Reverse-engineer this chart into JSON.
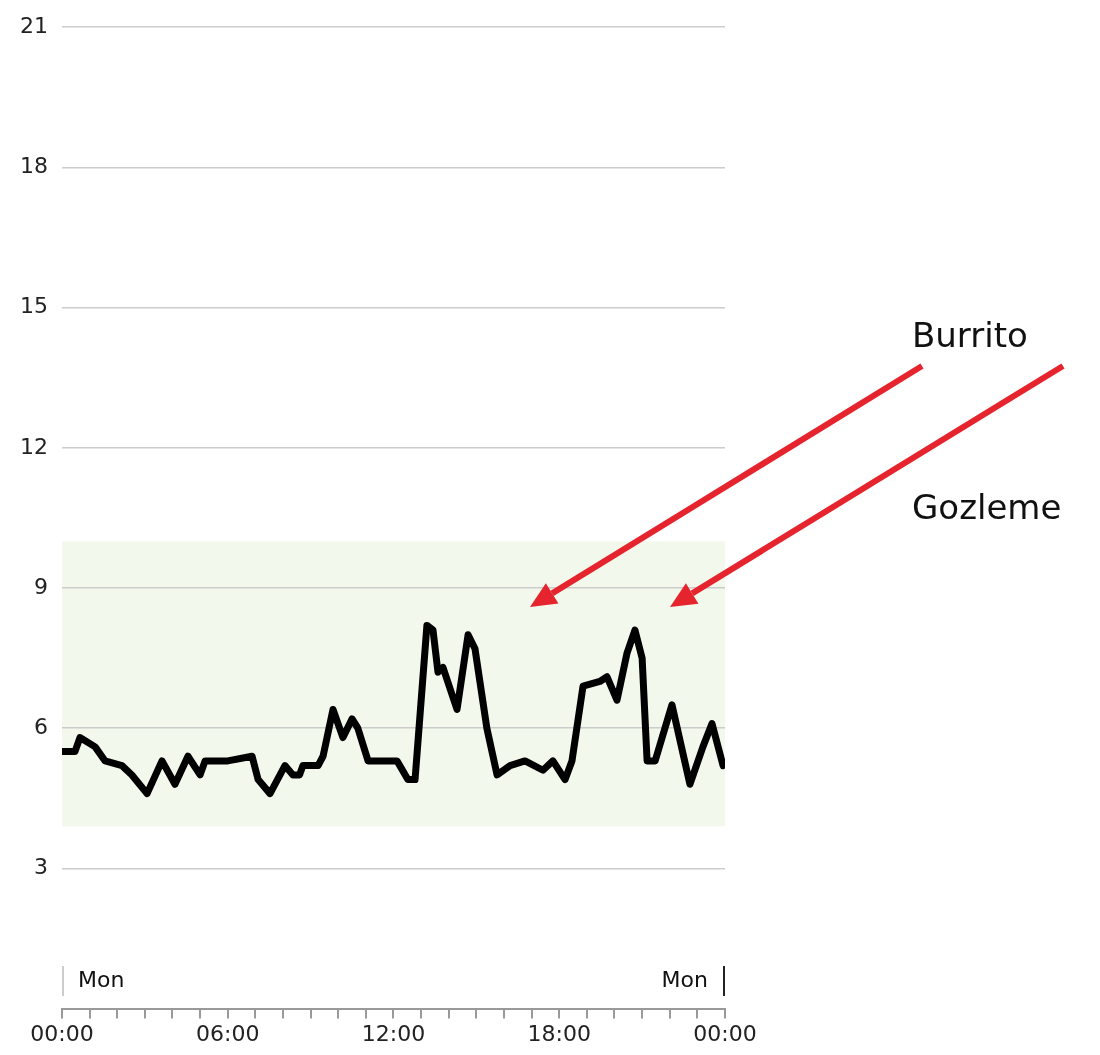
{
  "chart_data": {
    "type": "line",
    "x": [
      0,
      0.47,
      0.65,
      1.2,
      1.56,
      2.17,
      2.53,
      3.08,
      3.62,
      4.09,
      4.56,
      5.0,
      5.18,
      6.0,
      6.88,
      7.1,
      7.53,
      8.07,
      8.36,
      8.6,
      8.72,
      9.27,
      9.45,
      9.81,
      10.17,
      10.5,
      10.71,
      11.08,
      11.76,
      12.13,
      12.52,
      12.78,
      13.21,
      13.43,
      13.61,
      13.79,
      14.3,
      14.7,
      14.95,
      15.38,
      15.75,
      16.22,
      16.76,
      17.41,
      17.77,
      18.21,
      18.46,
      18.86,
      19.47,
      19.73,
      20.09,
      20.45,
      20.74,
      21.0,
      21.18,
      21.47,
      22.08,
      22.73,
      23.2,
      23.53,
      23.93
    ],
    "series": [
      {
        "color": "#000000",
        "values": [
          5.5,
          5.5,
          5.8,
          5.6,
          5.3,
          5.2,
          5.0,
          4.6,
          5.3,
          4.8,
          5.4,
          5.0,
          5.3,
          5.3,
          5.4,
          4.9,
          4.6,
          5.2,
          5.0,
          5.0,
          5.2,
          5.2,
          5.4,
          6.4,
          5.8,
          6.2,
          6.0,
          5.3,
          5.3,
          5.3,
          4.9,
          4.9,
          8.2,
          8.1,
          7.2,
          7.3,
          6.4,
          8.0,
          7.7,
          6.0,
          5.0,
          5.2,
          5.3,
          5.1,
          5.3,
          4.9,
          5.3,
          6.9,
          7.0,
          7.1,
          6.6,
          7.6,
          8.1,
          7.5,
          5.3,
          5.3,
          6.5,
          4.8,
          5.6,
          6.1,
          5.2
        ]
      }
    ],
    "xlim": [
      0,
      24
    ],
    "xticks": [
      {
        "value": 0,
        "label": "00:00"
      },
      {
        "value": 1,
        "label": null
      },
      {
        "value": 2,
        "label": null
      },
      {
        "value": 3,
        "label": null
      },
      {
        "value": 4,
        "label": null
      },
      {
        "value": 5,
        "label": null
      },
      {
        "value": 6,
        "label": "06:00"
      },
      {
        "value": 7,
        "label": null
      },
      {
        "value": 8,
        "label": null
      },
      {
        "value": 9,
        "label": null
      },
      {
        "value": 10,
        "label": null
      },
      {
        "value": 11,
        "label": null
      },
      {
        "value": 12,
        "label": "12:00"
      },
      {
        "value": 13,
        "label": null
      },
      {
        "value": 14,
        "label": null
      },
      {
        "value": 15,
        "label": null
      },
      {
        "value": 16,
        "label": null
      },
      {
        "value": 17,
        "label": null
      },
      {
        "value": 18,
        "label": "18:00"
      },
      {
        "value": 19,
        "label": null
      },
      {
        "value": 20,
        "label": null
      },
      {
        "value": 21,
        "label": null
      },
      {
        "value": 22,
        "label": null
      },
      {
        "value": 23,
        "label": null
      },
      {
        "value": 24,
        "label": "00:00"
      }
    ],
    "ylim": [
      0,
      21
    ],
    "yticks": [
      3,
      6,
      9,
      12,
      15,
      18,
      21
    ],
    "bands": [
      {
        "axis": "y",
        "from": 3.9,
        "to": 10,
        "color": "#f2f8eb"
      }
    ],
    "annotations": [
      "Burrito",
      "Gozleme",
      "Mon",
      "Mon"
    ],
    "grid": "y",
    "legend": false,
    "marker": "none",
    "line_style": "solid"
  }
}
